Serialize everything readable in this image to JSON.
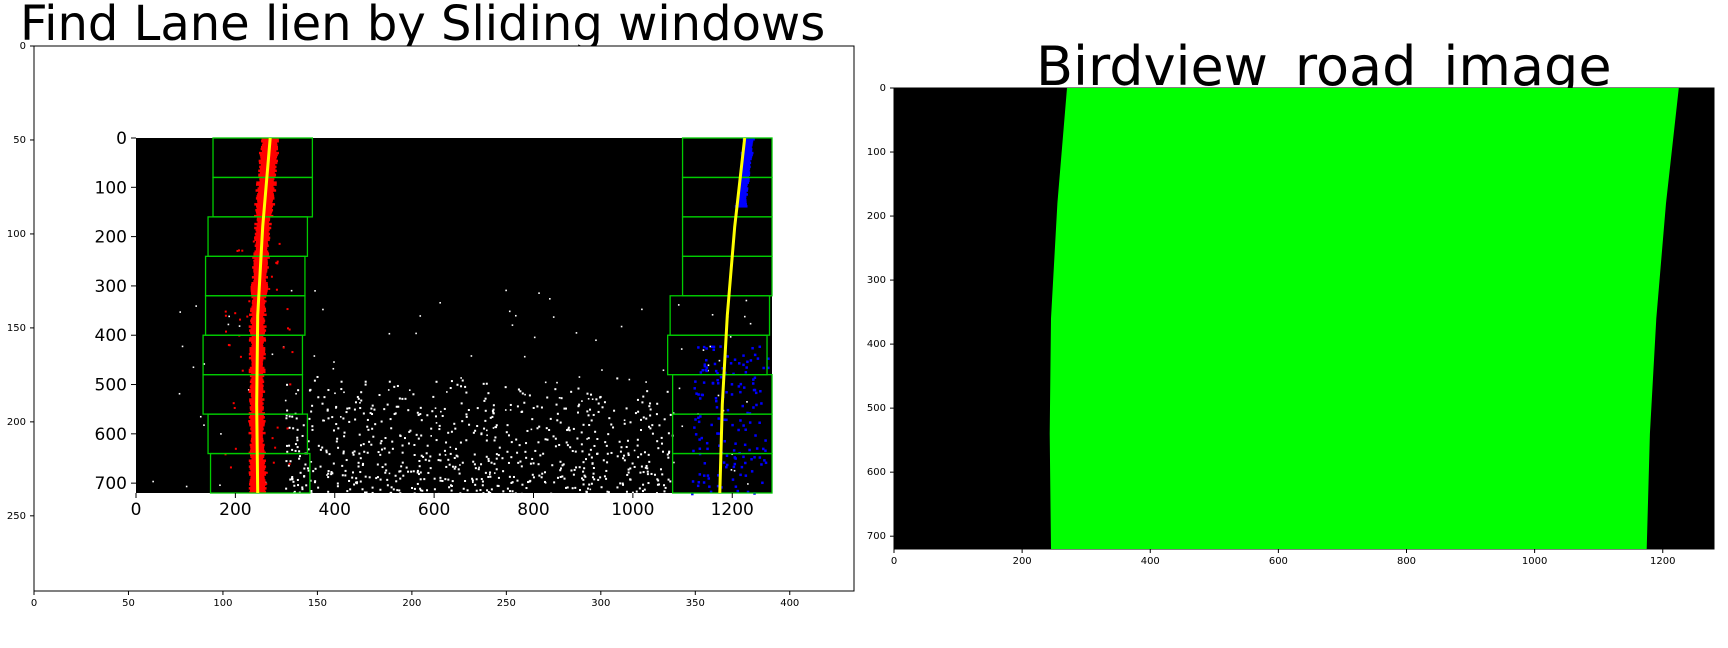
{
  "panels": {
    "left": {
      "title": "Find Lane lien by Sliding windows",
      "xaxis": {
        "ticks": [
          0,
          50,
          100,
          150,
          200,
          250,
          300,
          350,
          400
        ],
        "range": [
          0,
          434
        ]
      },
      "yaxis": {
        "ticks": [
          0,
          50,
          100,
          150,
          200,
          250
        ],
        "range": [
          0,
          290
        ]
      },
      "embedded_plot": {
        "xaxis": {
          "ticks": [
            0,
            200,
            400,
            600,
            800,
            1000,
            1200
          ],
          "range": [
            0,
            1280
          ]
        },
        "yaxis": {
          "ticks": [
            0,
            100,
            200,
            300,
            400,
            500,
            600,
            700
          ],
          "range": [
            0,
            720
          ]
        },
        "left_lane_fit": [
          [
            270,
            0
          ],
          [
            255,
            180
          ],
          [
            245,
            360
          ],
          [
            243,
            540
          ],
          [
            245,
            720
          ]
        ],
        "right_lane_fit": [
          [
            1225,
            0
          ],
          [
            1205,
            180
          ],
          [
            1190,
            360
          ],
          [
            1180,
            540
          ],
          [
            1175,
            720
          ]
        ],
        "left_windows": [
          {
            "x0": 155,
            "x1": 355,
            "y0": 0,
            "y1": 80
          },
          {
            "x0": 155,
            "x1": 355,
            "y0": 80,
            "y1": 160
          },
          {
            "x0": 145,
            "x1": 345,
            "y0": 160,
            "y1": 240
          },
          {
            "x0": 140,
            "x1": 340,
            "y0": 240,
            "y1": 320
          },
          {
            "x0": 140,
            "x1": 340,
            "y0": 320,
            "y1": 400
          },
          {
            "x0": 135,
            "x1": 335,
            "y0": 400,
            "y1": 480
          },
          {
            "x0": 135,
            "x1": 335,
            "y0": 480,
            "y1": 560
          },
          {
            "x0": 145,
            "x1": 345,
            "y0": 560,
            "y1": 640
          },
          {
            "x0": 150,
            "x1": 350,
            "y0": 640,
            "y1": 720
          }
        ],
        "right_windows": [
          {
            "x0": 1100,
            "x1": 1280,
            "y0": 0,
            "y1": 80
          },
          {
            "x0": 1100,
            "x1": 1280,
            "y0": 80,
            "y1": 160
          },
          {
            "x0": 1100,
            "x1": 1280,
            "y0": 160,
            "y1": 240
          },
          {
            "x0": 1100,
            "x1": 1280,
            "y0": 240,
            "y1": 320
          },
          {
            "x0": 1075,
            "x1": 1275,
            "y0": 320,
            "y1": 400
          },
          {
            "x0": 1070,
            "x1": 1270,
            "y0": 400,
            "y1": 480
          },
          {
            "x0": 1080,
            "x1": 1280,
            "y0": 480,
            "y1": 560
          },
          {
            "x0": 1080,
            "x1": 1280,
            "y0": 560,
            "y1": 640
          },
          {
            "x0": 1080,
            "x1": 1280,
            "y0": 640,
            "y1": 720
          }
        ]
      }
    },
    "right": {
      "title": "Birdview_road_image",
      "xaxis": {
        "ticks": [
          0,
          200,
          400,
          600,
          800,
          1000,
          1200
        ],
        "range": [
          0,
          1280
        ]
      },
      "yaxis": {
        "ticks": [
          0,
          100,
          200,
          300,
          400,
          500,
          600,
          700
        ],
        "range": [
          0,
          720
        ]
      },
      "lane_polygon": [
        [
          270,
          0
        ],
        [
          1225,
          0
        ],
        [
          1205,
          180
        ],
        [
          1190,
          360
        ],
        [
          1180,
          540
        ],
        [
          1175,
          720
        ],
        [
          245,
          720
        ],
        [
          243,
          540
        ],
        [
          245,
          360
        ],
        [
          255,
          180
        ]
      ]
    }
  },
  "colors": {
    "lane_fill": "#00ff00",
    "left_pixels": "#ff0000",
    "right_pixels": "#0000ff",
    "fit_line": "#ffff00",
    "window_box": "#00cc00",
    "background": "#000000"
  }
}
